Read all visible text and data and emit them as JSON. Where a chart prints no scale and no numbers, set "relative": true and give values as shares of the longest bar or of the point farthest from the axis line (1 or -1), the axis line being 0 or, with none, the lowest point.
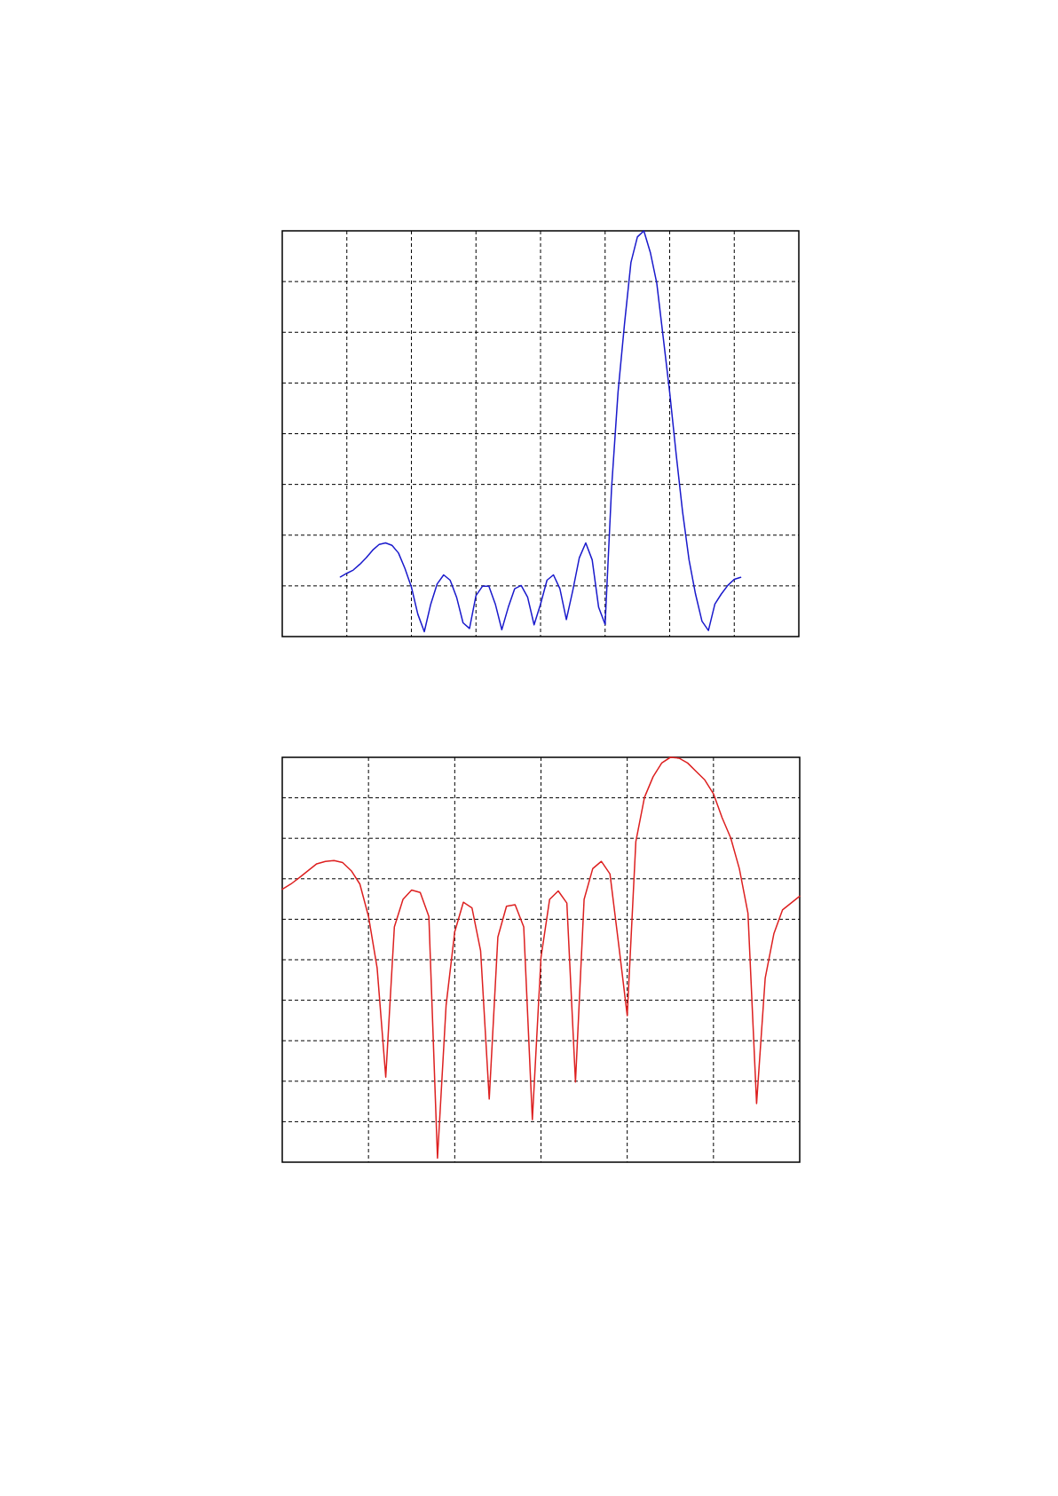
{
  "chart_data": [
    {
      "type": "line",
      "relative": true,
      "grid": true,
      "categories": [
        null,
        null,
        null,
        null,
        null,
        null,
        null,
        null,
        null,
        null,
        null,
        null,
        null,
        null,
        null,
        null,
        null,
        null,
        null,
        null,
        null,
        null,
        null,
        null,
        null,
        null,
        null,
        null,
        null,
        null,
        null,
        null,
        null,
        null,
        null,
        null,
        null,
        null,
        null,
        null,
        null,
        null,
        null,
        null,
        null,
        null,
        null,
        null,
        null,
        null,
        null,
        null,
        null,
        null,
        null,
        null,
        null,
        null,
        null,
        null,
        null,
        null,
        null,
        null,
        null,
        null,
        null,
        null,
        null,
        null,
        null,
        null,
        null,
        null,
        null,
        null,
        null,
        null,
        null,
        null,
        null
      ],
      "series": [
        {
          "color": "#1a1acc",
          "values": [
            null,
            null,
            null,
            null,
            null,
            null,
            null,
            null,
            null,
            0.147,
            0.156,
            0.164,
            0.178,
            0.194,
            0.213,
            0.227,
            0.231,
            0.225,
            0.206,
            0.168,
            0.122,
            0.055,
            0.012,
            0.08,
            0.13,
            0.152,
            0.139,
            0.097,
            0.034,
            0.02,
            0.101,
            0.124,
            0.124,
            0.08,
            0.017,
            0.072,
            0.118,
            0.126,
            0.097,
            0.029,
            0.08,
            0.139,
            0.152,
            0.118,
            0.042,
            0.114,
            0.194,
            0.231,
            0.189,
            0.072,
            0.03,
            0.366,
            0.602,
            0.77,
            0.922,
            0.985,
            1.0,
            0.947,
            0.871,
            0.737,
            0.602,
            0.45,
            0.307,
            0.189,
            0.105,
            0.038,
            0.015,
            0.08,
            0.105,
            0.126,
            0.141,
            0.146,
            null,
            null,
            null,
            null,
            null,
            null,
            null,
            null,
            null
          ]
        }
      ]
    },
    {
      "type": "line",
      "relative": true,
      "grid": true,
      "categories": [
        null,
        null,
        null,
        null,
        null,
        null,
        null,
        null,
        null,
        null,
        null,
        null,
        null,
        null,
        null,
        null,
        null,
        null,
        null,
        null,
        null,
        null,
        null,
        null,
        null,
        null,
        null,
        null,
        null,
        null,
        null,
        null,
        null,
        null,
        null,
        null,
        null,
        null,
        null,
        null,
        null,
        null,
        null,
        null,
        null,
        null,
        null,
        null,
        null,
        null,
        null,
        null,
        null,
        null,
        null,
        null,
        null,
        null,
        null,
        null,
        null
      ],
      "series": [
        {
          "color": "#dd2020",
          "values": [
            0.674,
            0.687,
            0.703,
            0.72,
            0.737,
            0.743,
            0.745,
            0.74,
            0.72,
            0.687,
            0.607,
            0.48,
            0.21,
            0.581,
            0.649,
            0.672,
            0.666,
            0.607,
            0.01,
            0.388,
            0.569,
            0.642,
            0.628,
            0.522,
            0.156,
            0.556,
            0.632,
            0.636,
            0.581,
            0.105,
            0.505,
            0.649,
            0.67,
            0.64,
            0.198,
            0.649,
            0.725,
            0.743,
            0.712,
            0.539,
            0.362,
            0.792,
            0.901,
            0.952,
            0.986,
            1.0,
            0.998,
            0.986,
            0.965,
            0.944,
            0.91,
            0.851,
            0.801,
            0.725,
            0.615,
            0.145,
            0.455,
            0.564,
            0.623,
            0.64,
            0.657
          ]
        }
      ]
    }
  ]
}
